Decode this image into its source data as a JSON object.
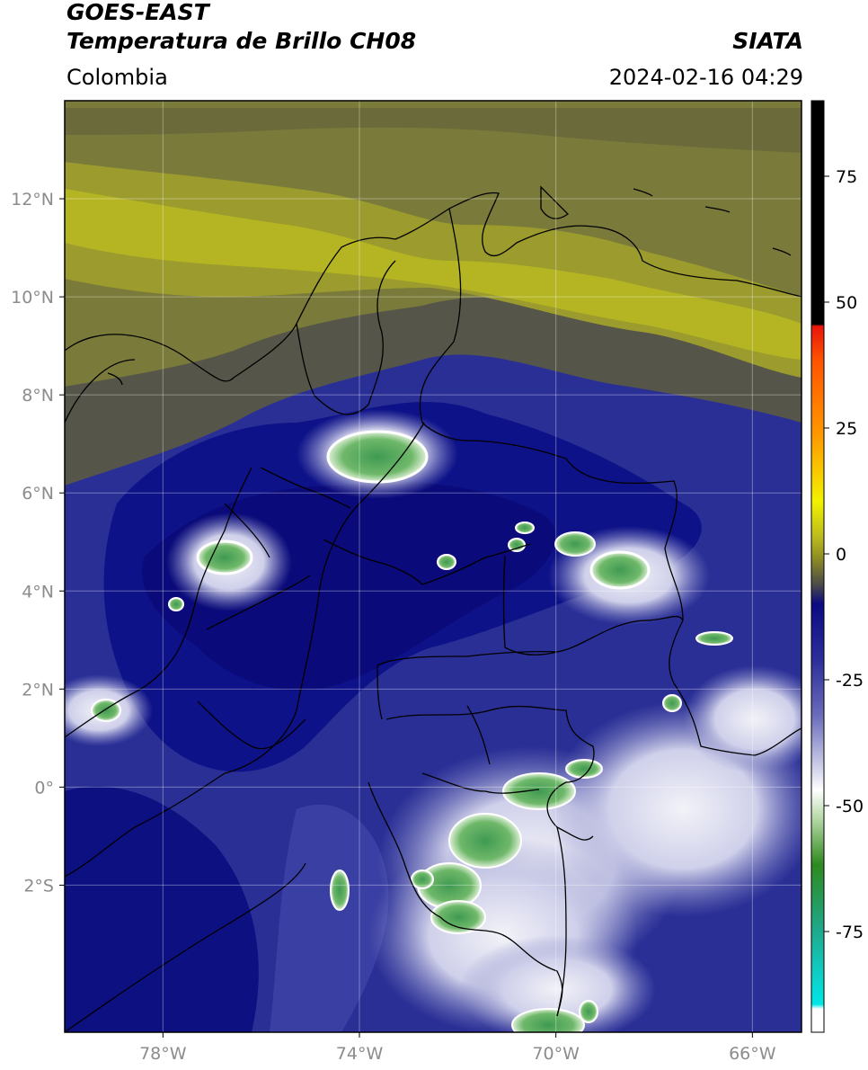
{
  "header": {
    "title_line1": "GOES-EAST",
    "title_line2": "Temperatura de Brillo CH08",
    "brand": "SIATA",
    "region": "Colombia",
    "timestamp": "2024-02-16 04:29"
  },
  "map": {
    "lon_range": [
      -80,
      -65
    ],
    "lat_range": [
      -5,
      14
    ],
    "lon_ticks": [
      {
        "value": -78,
        "label": "78°W"
      },
      {
        "value": -74,
        "label": "74°W"
      },
      {
        "value": -70,
        "label": "70°W"
      },
      {
        "value": -66,
        "label": "66°W"
      }
    ],
    "lat_ticks": [
      {
        "value": 12,
        "label": "12°N"
      },
      {
        "value": 10,
        "label": "10°N"
      },
      {
        "value": 8,
        "label": "8°N"
      },
      {
        "value": 6,
        "label": "6°N"
      },
      {
        "value": 4,
        "label": "4°N"
      },
      {
        "value": 2,
        "label": "2°N"
      },
      {
        "value": 0,
        "label": "0°"
      },
      {
        "value": -2,
        "label": "2°S"
      }
    ]
  },
  "colorbar": {
    "range": [
      -95,
      90
    ],
    "ticks": [
      {
        "value": 75,
        "label": "75"
      },
      {
        "value": 50,
        "label": "50"
      },
      {
        "value": 25,
        "label": "25"
      },
      {
        "value": 0,
        "label": "0"
      },
      {
        "value": -25,
        "label": "-25"
      },
      {
        "value": -50,
        "label": "-50"
      },
      {
        "value": -75,
        "label": "-75"
      }
    ],
    "colors": {
      "black": "#000000",
      "red": "#e8150b",
      "orange": "#ff8a00",
      "yellow": "#f2f200",
      "olive": "#8f8f22",
      "gray": "#4a4a4a",
      "navy": "#0a0a82",
      "blue": "#3a3ea6",
      "lavender": "#a6a8d6",
      "white": "#ffffff",
      "green": "#2e8a1e",
      "teal": "#1fa88a",
      "cyan": "#00e6e6"
    }
  }
}
